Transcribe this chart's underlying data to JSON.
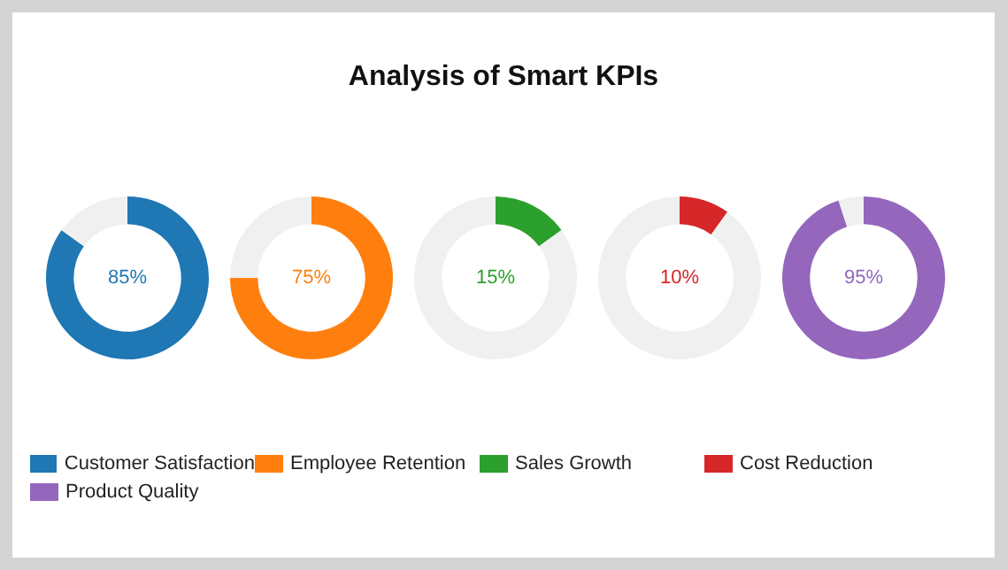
{
  "chart_data": [
    {
      "type": "donut",
      "categories": [
        "Customer Satisfaction",
        null
      ],
      "values": [
        85,
        15
      ],
      "colors": [
        "#1f77b4",
        "#f0f0f0"
      ],
      "annotations": [
        "85%"
      ],
      "legend": "bottom"
    },
    {
      "type": "donut",
      "categories": [
        "Employee Retention",
        null
      ],
      "values": [
        75,
        25
      ],
      "colors": [
        "#ff7f0e",
        "#f0f0f0"
      ],
      "annotations": [
        "75%"
      ],
      "legend": "bottom"
    },
    {
      "type": "donut",
      "title": "Analysis of Smart KPIs",
      "categories": [
        "Sales Growth",
        null
      ],
      "values": [
        15,
        85
      ],
      "colors": [
        "#2ca02c",
        "#f0f0f0"
      ],
      "annotations": [
        "15%"
      ],
      "legend": "bottom"
    },
    {
      "type": "donut",
      "categories": [
        "Cost Reduction",
        null
      ],
      "values": [
        10,
        90
      ],
      "colors": [
        "#d62728",
        "#f0f0f0"
      ],
      "annotations": [
        "10%"
      ],
      "legend": "bottom"
    },
    {
      "type": "donut",
      "categories": [
        "Product Quality",
        null
      ],
      "values": [
        95,
        5
      ],
      "colors": [
        "#9467bd",
        "#f0f0f0"
      ],
      "annotations": [
        "95%"
      ],
      "legend": "bottom"
    }
  ]
}
